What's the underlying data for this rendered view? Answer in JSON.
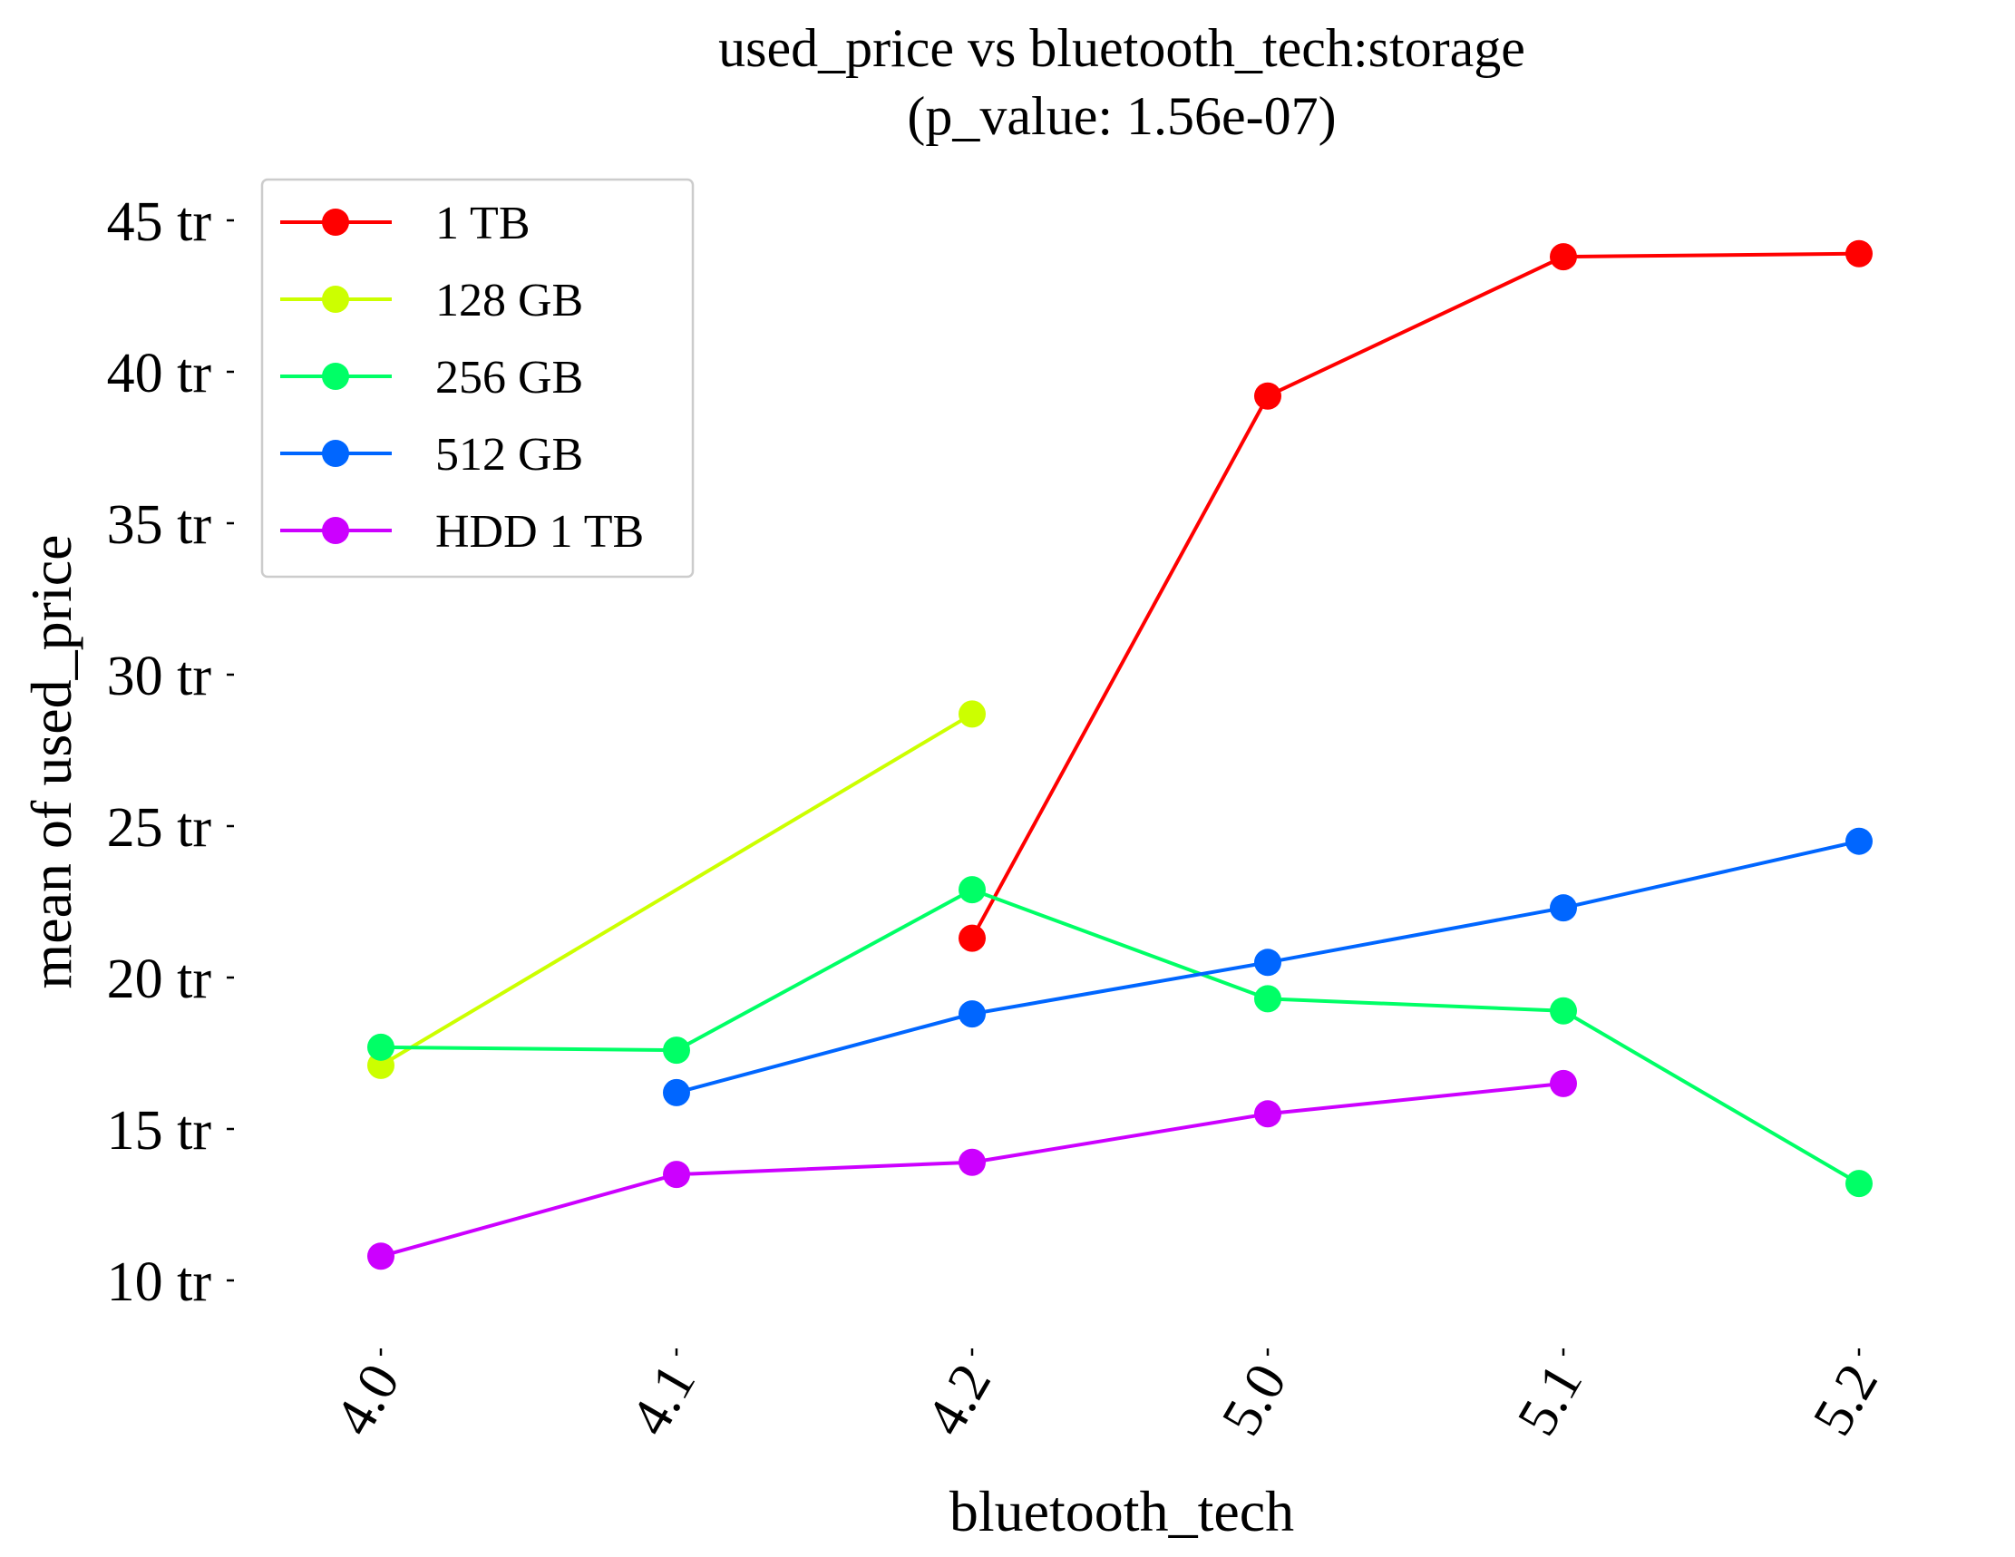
{
  "chart_data": {
    "type": "line",
    "title": "used_price vs bluetooth_tech:storage",
    "subtitle": "(p_value: 1.56e-07)",
    "xlabel": "bluetooth_tech",
    "ylabel": "mean of used_price",
    "categories": [
      "4.0",
      "4.1",
      "4.2",
      "5.0",
      "5.1",
      "5.2"
    ],
    "y_ticks": [
      {
        "value": 10,
        "label": "10 tr"
      },
      {
        "value": 15,
        "label": "15 tr"
      },
      {
        "value": 20,
        "label": "20 tr"
      },
      {
        "value": 25,
        "label": "25 tr"
      },
      {
        "value": 30,
        "label": "30 tr"
      },
      {
        "value": 35,
        "label": "35 tr"
      },
      {
        "value": 40,
        "label": "40 tr"
      },
      {
        "value": 45,
        "label": "45 tr"
      }
    ],
    "ylim": [
      8,
      47
    ],
    "grid": false,
    "legend_position": "top-left",
    "series": [
      {
        "name": "1 TB",
        "color": "#ff0000",
        "values": [
          null,
          null,
          21.3,
          39.2,
          43.8,
          43.9
        ]
      },
      {
        "name": "128 GB",
        "color": "#ccff00",
        "values": [
          17.1,
          null,
          28.7,
          null,
          null,
          null
        ]
      },
      {
        "name": "256 GB",
        "color": "#00ff66",
        "values": [
          17.7,
          17.6,
          22.9,
          19.3,
          18.9,
          13.2
        ]
      },
      {
        "name": "512 GB",
        "color": "#0066ff",
        "values": [
          null,
          16.2,
          18.8,
          20.5,
          22.3,
          24.5
        ]
      },
      {
        "name": "HDD 1 TB",
        "color": "#cc00ff",
        "values": [
          10.8,
          13.5,
          13.9,
          15.5,
          16.5,
          null
        ]
      }
    ]
  }
}
